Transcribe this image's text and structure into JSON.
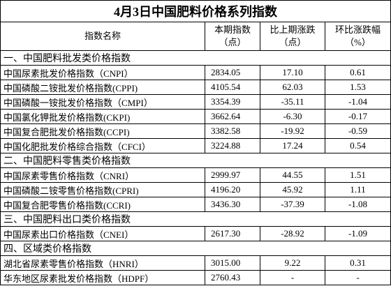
{
  "title": "4月3日中国肥料价格系列指数",
  "header": [
    [
      "指数名称"
    ],
    [
      "本期指数",
      "（点）"
    ],
    [
      "比上期涨跌",
      "（点）"
    ],
    [
      "环比涨跌幅",
      "（%）"
    ]
  ],
  "sections": [
    {
      "title": "一、中国肥料批发类价格指数",
      "rows": [
        [
          "中国尿素批发价格指数（CNPI）",
          "2834.05",
          "17.10",
          "0.61"
        ],
        [
          "中国磷酸二铵批发价格指数(CPPI)",
          "4105.54",
          "62.03",
          "1.53"
        ],
        [
          "中国磷酸一铵批发价格指数（CMPI）",
          "3354.39",
          "-35.11",
          "-1.04"
        ],
        [
          "中国氯化钾批发价格指数(CKPI)",
          "3662.64",
          "-6.30",
          "-0.17"
        ],
        [
          "中国复合肥批发价格指数(CCPI)",
          "3382.58",
          "-19.92",
          "-0.59"
        ],
        [
          "中国化肥批发价格综合指数（CFCI）",
          "3224.88",
          "17.24",
          "0.54"
        ]
      ]
    },
    {
      "title": "二、中国肥料零售类价格指数",
      "rows": [
        [
          "中国尿素零售价格指数（CNRI）",
          "2999.97",
          "44.55",
          "1.51"
        ],
        [
          "中国磷酸二铵零售价格指数(CPRI)",
          "4196.20",
          "45.92",
          "1.11"
        ],
        [
          "中国复合肥零售价格指数(CCRI)",
          "3436.30",
          "-37.39",
          "-1.08"
        ]
      ]
    },
    {
      "title": "三、中国肥料出口类价格指数",
      "rows": [
        [
          "中国尿素出口价格指数（CNEI）",
          "2617.30",
          "-28.92",
          "-1.09"
        ]
      ]
    },
    {
      "title": "四、区域类价格指数",
      "rows": [
        [
          "湖北省尿素零售价格指数（HNRI）",
          "3015.00",
          "9.22",
          "0.31"
        ],
        [
          "华东地区尿素批发价格指数（HDPF）",
          "2760.43",
          "-",
          "-"
        ]
      ]
    }
  ]
}
